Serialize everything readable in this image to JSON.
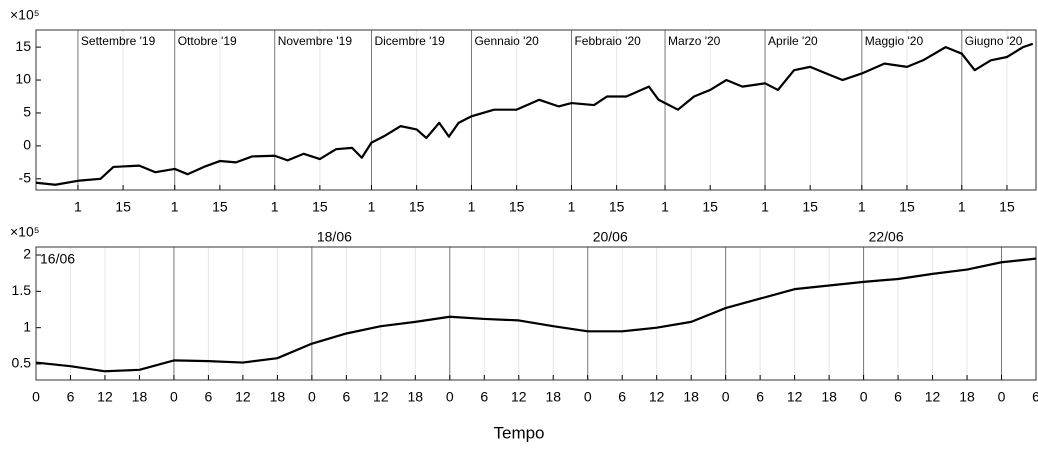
{
  "chart_data": [
    {
      "type": "line",
      "y_multiplier": "×10⁵",
      "color": "#000000",
      "grid": true,
      "xlim": [
        "2019-08-19",
        "2020-06-24"
      ],
      "ylim": [
        -6.7,
        17.6
      ],
      "yticks": [
        -5,
        0,
        5,
        10,
        15
      ],
      "xticks": [
        {
          "value": "2019-09-01",
          "label": "1"
        },
        {
          "value": "2019-09-15",
          "label": "15"
        },
        {
          "value": "2019-10-01",
          "label": "1"
        },
        {
          "value": "2019-10-15",
          "label": "15"
        },
        {
          "value": "2019-11-01",
          "label": "1"
        },
        {
          "value": "2019-11-15",
          "label": "15"
        },
        {
          "value": "2019-12-01",
          "label": "1"
        },
        {
          "value": "2019-12-15",
          "label": "15"
        },
        {
          "value": "2020-01-01",
          "label": "1"
        },
        {
          "value": "2020-01-15",
          "label": "15"
        },
        {
          "value": "2020-02-01",
          "label": "1"
        },
        {
          "value": "2020-02-15",
          "label": "15"
        },
        {
          "value": "2020-03-01",
          "label": "1"
        },
        {
          "value": "2020-03-15",
          "label": "15"
        },
        {
          "value": "2020-04-01",
          "label": "1"
        },
        {
          "value": "2020-04-15",
          "label": "15"
        },
        {
          "value": "2020-05-01",
          "label": "1"
        },
        {
          "value": "2020-05-15",
          "label": "15"
        },
        {
          "value": "2020-06-01",
          "label": "1"
        },
        {
          "value": "2020-06-15",
          "label": "15"
        }
      ],
      "period_labels": [
        {
          "value": "2019-09-01",
          "label": "Settembre '19"
        },
        {
          "value": "2019-10-01",
          "label": "Ottobre '19"
        },
        {
          "value": "2019-11-01",
          "label": "Novembre '19"
        },
        {
          "value": "2019-12-01",
          "label": "Dicembre '19"
        },
        {
          "value": "2020-01-01",
          "label": "Gennaio '20"
        },
        {
          "value": "2020-02-01",
          "label": "Febbraio '20"
        },
        {
          "value": "2020-03-01",
          "label": "Marzo '20"
        },
        {
          "value": "2020-04-01",
          "label": "Aprile '20"
        },
        {
          "value": "2020-05-01",
          "label": "Maggio '20"
        },
        {
          "value": "2020-06-01",
          "label": "Giugno '20"
        }
      ],
      "x": [
        "2019-08-19",
        "2019-08-25",
        "2019-09-01",
        "2019-09-08",
        "2019-09-12",
        "2019-09-20",
        "2019-09-25",
        "2019-10-01",
        "2019-10-05",
        "2019-10-10",
        "2019-10-15",
        "2019-10-20",
        "2019-10-25",
        "2019-11-01",
        "2019-11-05",
        "2019-11-10",
        "2019-11-15",
        "2019-11-20",
        "2019-11-25",
        "2019-11-28",
        "2019-12-01",
        "2019-12-05",
        "2019-12-10",
        "2019-12-15",
        "2019-12-18",
        "2019-12-22",
        "2019-12-25",
        "2019-12-28",
        "2020-01-01",
        "2020-01-08",
        "2020-01-15",
        "2020-01-22",
        "2020-01-28",
        "2020-02-01",
        "2020-02-08",
        "2020-02-12",
        "2020-02-18",
        "2020-02-25",
        "2020-02-28",
        "2020-03-05",
        "2020-03-10",
        "2020-03-15",
        "2020-03-20",
        "2020-03-25",
        "2020-04-01",
        "2020-04-05",
        "2020-04-10",
        "2020-04-15",
        "2020-04-20",
        "2020-04-25",
        "2020-05-01",
        "2020-05-08",
        "2020-05-15",
        "2020-05-20",
        "2020-05-27",
        "2020-06-01",
        "2020-06-05",
        "2020-06-10",
        "2020-06-15",
        "2020-06-20",
        "2020-06-23"
      ],
      "values": [
        -5.6,
        -5.9,
        -5.3,
        -5.0,
        -3.2,
        -3.0,
        -4.0,
        -3.5,
        -4.3,
        -3.2,
        -2.3,
        -2.5,
        -1.6,
        -1.5,
        -2.2,
        -1.2,
        -2.0,
        -0.5,
        -0.3,
        -1.8,
        0.5,
        1.5,
        3.0,
        2.5,
        1.2,
        3.5,
        1.4,
        3.5,
        4.5,
        5.5,
        5.5,
        7.0,
        6.0,
        6.5,
        6.2,
        7.5,
        7.5,
        9.0,
        7.0,
        5.5,
        7.5,
        8.5,
        10.0,
        9.0,
        9.5,
        8.5,
        11.5,
        12.0,
        11.0,
        10.0,
        11.0,
        12.5,
        12.0,
        13.0,
        15.0,
        14.0,
        11.5,
        13.0,
        13.5,
        15.0,
        15.5
      ]
    },
    {
      "type": "line",
      "y_multiplier": "×10⁵",
      "x_label": "Tempo",
      "color": "#000000",
      "grid": true,
      "xlim": [
        "16/06 00:00",
        "23/06 06:00"
      ],
      "ylim": [
        0.28,
        2.11
      ],
      "yticks": [
        0.5,
        1,
        1.5,
        2
      ],
      "xticks": [
        {
          "value": "16/06 00:00",
          "label": "0"
        },
        {
          "value": "16/06 06:00",
          "label": "6"
        },
        {
          "value": "16/06 12:00",
          "label": "12"
        },
        {
          "value": "16/06 18:00",
          "label": "18"
        },
        {
          "value": "17/06 00:00",
          "label": "0"
        },
        {
          "value": "17/06 06:00",
          "label": "6"
        },
        {
          "value": "17/06 12:00",
          "label": "12"
        },
        {
          "value": "17/06 18:00",
          "label": "18"
        },
        {
          "value": "18/06 00:00",
          "label": "0"
        },
        {
          "value": "18/06 06:00",
          "label": "6"
        },
        {
          "value": "18/06 12:00",
          "label": "12"
        },
        {
          "value": "18/06 18:00",
          "label": "18"
        },
        {
          "value": "19/06 00:00",
          "label": "0"
        },
        {
          "value": "19/06 06:00",
          "label": "6"
        },
        {
          "value": "19/06 12:00",
          "label": "12"
        },
        {
          "value": "19/06 18:00",
          "label": "18"
        },
        {
          "value": "20/06 00:00",
          "label": "0"
        },
        {
          "value": "20/06 06:00",
          "label": "6"
        },
        {
          "value": "20/06 12:00",
          "label": "12"
        },
        {
          "value": "20/06 18:00",
          "label": "18"
        },
        {
          "value": "21/06 00:00",
          "label": "0"
        },
        {
          "value": "21/06 06:00",
          "label": "6"
        },
        {
          "value": "21/06 12:00",
          "label": "12"
        },
        {
          "value": "21/06 18:00",
          "label": "18"
        },
        {
          "value": "22/06 00:00",
          "label": "0"
        },
        {
          "value": "22/06 06:00",
          "label": "6"
        },
        {
          "value": "22/06 12:00",
          "label": "12"
        },
        {
          "value": "22/06 18:00",
          "label": "18"
        },
        {
          "value": "23/06 00:00",
          "label": "0"
        },
        {
          "value": "23/06 06:00",
          "label": "6"
        }
      ],
      "period_labels": [
        {
          "value": "16/06 00:00",
          "label": "16/06"
        },
        {
          "value": "18/06 00:00",
          "label": "18/06"
        },
        {
          "value": "20/06 00:00",
          "label": "20/06"
        },
        {
          "value": "22/06 00:00",
          "label": "22/06"
        }
      ],
      "x": [
        "16/06 00:00",
        "16/06 06:00",
        "16/06 12:00",
        "16/06 18:00",
        "17/06 00:00",
        "17/06 06:00",
        "17/06 12:00",
        "17/06 18:00",
        "18/06 00:00",
        "18/06 06:00",
        "18/06 12:00",
        "18/06 18:00",
        "19/06 00:00",
        "19/06 06:00",
        "19/06 12:00",
        "19/06 18:00",
        "20/06 00:00",
        "20/06 06:00",
        "20/06 12:00",
        "20/06 18:00",
        "21/06 00:00",
        "21/06 06:00",
        "21/06 12:00",
        "21/06 18:00",
        "22/06 00:00",
        "22/06 06:00",
        "22/06 12:00",
        "22/06 18:00",
        "23/06 00:00",
        "23/06 06:00"
      ],
      "values": [
        0.52,
        0.47,
        0.4,
        0.42,
        0.55,
        0.54,
        0.52,
        0.58,
        0.78,
        0.92,
        1.02,
        1.08,
        1.15,
        1.12,
        1.1,
        1.02,
        0.95,
        0.95,
        1.0,
        1.08,
        1.27,
        1.4,
        1.53,
        1.58,
        1.63,
        1.67,
        1.74,
        1.8,
        1.9,
        1.95
      ]
    }
  ]
}
